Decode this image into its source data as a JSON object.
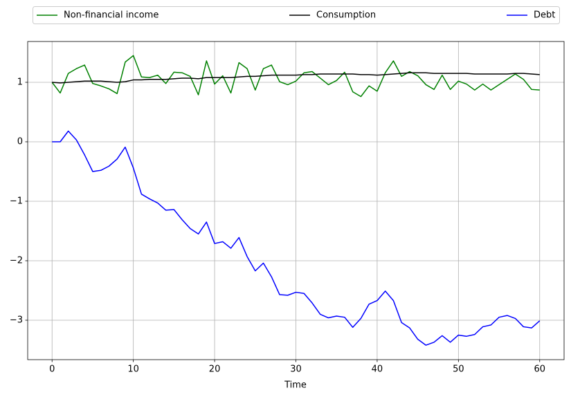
{
  "chart_data": {
    "type": "line",
    "x_label": "Time",
    "x": [
      0,
      1,
      2,
      3,
      4,
      5,
      6,
      7,
      8,
      9,
      10,
      11,
      12,
      13,
      14,
      15,
      16,
      17,
      18,
      19,
      20,
      21,
      22,
      23,
      24,
      25,
      26,
      27,
      28,
      29,
      30,
      31,
      32,
      33,
      34,
      35,
      36,
      37,
      38,
      39,
      40,
      41,
      42,
      43,
      44,
      45,
      46,
      47,
      48,
      49,
      50,
      51,
      52,
      53,
      54,
      55,
      56,
      57,
      58,
      59,
      60
    ],
    "series": [
      {
        "name": "Non-financial income",
        "color": "#008000",
        "values": [
          1.0,
          0.82,
          1.15,
          1.23,
          1.29,
          0.98,
          0.94,
          0.89,
          0.81,
          1.34,
          1.45,
          1.09,
          1.08,
          1.12,
          0.98,
          1.17,
          1.16,
          1.1,
          0.79,
          1.36,
          0.97,
          1.11,
          0.82,
          1.33,
          1.23,
          0.87,
          1.23,
          1.29,
          1.01,
          0.96,
          1.02,
          1.16,
          1.18,
          1.07,
          0.96,
          1.03,
          1.17,
          0.84,
          0.76,
          0.94,
          0.85,
          1.16,
          1.36,
          1.1,
          1.18,
          1.11,
          0.96,
          0.88,
          1.12,
          0.88,
          1.02,
          0.97,
          0.87,
          0.97,
          0.87,
          0.96,
          1.05,
          1.14,
          1.05,
          0.88,
          0.87
        ]
      },
      {
        "name": "Consumption",
        "color": "#000000",
        "values": [
          1.0,
          0.99,
          1.0,
          1.01,
          1.02,
          1.02,
          1.02,
          1.01,
          1.0,
          1.01,
          1.04,
          1.04,
          1.05,
          1.05,
          1.05,
          1.06,
          1.07,
          1.07,
          1.06,
          1.08,
          1.08,
          1.08,
          1.08,
          1.09,
          1.1,
          1.1,
          1.11,
          1.12,
          1.12,
          1.12,
          1.12,
          1.13,
          1.13,
          1.14,
          1.14,
          1.14,
          1.14,
          1.14,
          1.13,
          1.13,
          1.12,
          1.13,
          1.14,
          1.15,
          1.16,
          1.16,
          1.16,
          1.15,
          1.15,
          1.15,
          1.15,
          1.15,
          1.14,
          1.14,
          1.14,
          1.14,
          1.14,
          1.15,
          1.15,
          1.14,
          1.13
        ]
      },
      {
        "name": "Debt",
        "color": "#0000ff",
        "values": [
          0.0,
          0.0,
          0.18,
          0.03,
          -0.22,
          -0.5,
          -0.48,
          -0.41,
          -0.29,
          -0.09,
          -0.44,
          -0.88,
          -0.96,
          -1.03,
          -1.15,
          -1.14,
          -1.31,
          -1.46,
          -1.55,
          -1.35,
          -1.71,
          -1.68,
          -1.79,
          -1.61,
          -1.93,
          -2.17,
          -2.04,
          -2.27,
          -2.57,
          -2.58,
          -2.53,
          -2.55,
          -2.71,
          -2.9,
          -2.96,
          -2.93,
          -2.95,
          -3.12,
          -2.97,
          -2.73,
          -2.67,
          -2.51,
          -2.67,
          -3.04,
          -3.13,
          -3.32,
          -3.42,
          -3.37,
          -3.26,
          -3.37,
          -3.25,
          -3.27,
          -3.24,
          -3.11,
          -3.08,
          -2.95,
          -2.92,
          -2.97,
          -3.11,
          -3.13,
          -3.01
        ]
      }
    ],
    "xlim": [
      -3,
      63
    ],
    "ylim": [
      -3.663,
      1.686
    ],
    "xticks": [
      0,
      10,
      20,
      30,
      40,
      50,
      60
    ],
    "yticks": [
      {
        "value": -3,
        "label": "−3"
      },
      {
        "value": -2,
        "label": "−2"
      },
      {
        "value": -1,
        "label": "−1"
      },
      0,
      1
    ],
    "grid": true,
    "grid_color": "#b0b0b0",
    "legend": "top"
  }
}
